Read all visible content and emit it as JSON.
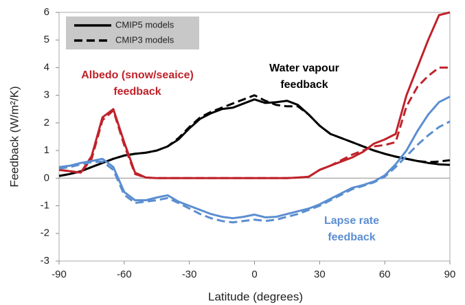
{
  "chart_data": {
    "type": "line",
    "x_label": "Latitude (degrees)",
    "y_label": "Feedback (W/m²/K)",
    "xlim": [
      -90,
      90
    ],
    "ylim": [
      -3,
      6
    ],
    "xticks": [
      -90,
      -60,
      -30,
      0,
      30,
      60,
      90
    ],
    "yticks": [
      -3,
      -2,
      -1,
      0,
      1,
      2,
      3,
      4,
      5,
      6
    ],
    "legend_position": "upper left",
    "series": [
      {
        "name": "CMIP5 models",
        "style": "solid"
      },
      {
        "name": "CMIP3 models",
        "style": "dashed"
      }
    ],
    "x": [
      -90,
      -85,
      -80,
      -75,
      -70,
      -65,
      -60,
      -55,
      -50,
      -45,
      -40,
      -35,
      -30,
      -25,
      -20,
      -15,
      -10,
      -5,
      0,
      5,
      10,
      15,
      20,
      25,
      30,
      35,
      40,
      45,
      50,
      55,
      60,
      65,
      70,
      75,
      80,
      85,
      90
    ],
    "feedbacks": [
      {
        "label": [
          "Water vapour",
          "feedback"
        ],
        "color": "#000000",
        "values": [
          [
            0.08,
            0.15,
            0.25,
            0.4,
            0.55,
            0.7,
            0.82,
            0.88,
            0.92,
            1.0,
            1.15,
            1.4,
            1.8,
            2.15,
            2.35,
            2.5,
            2.55,
            2.7,
            2.85,
            2.72,
            2.75,
            2.8,
            2.65,
            2.3,
            1.9,
            1.6,
            1.45,
            1.3,
            1.15,
            1.0,
            0.88,
            0.78,
            0.7,
            0.62,
            0.55,
            0.5,
            0.48
          ],
          [
            0.08,
            0.15,
            0.25,
            0.4,
            0.55,
            0.7,
            0.82,
            0.88,
            0.92,
            1.0,
            1.15,
            1.45,
            1.85,
            2.2,
            2.4,
            2.55,
            2.7,
            2.85,
            3.0,
            2.8,
            2.65,
            2.6,
            2.6,
            2.3,
            1.9,
            1.6,
            1.45,
            1.3,
            1.15,
            1.0,
            0.88,
            0.78,
            0.7,
            0.62,
            0.58,
            0.6,
            0.65
          ]
        ]
      },
      {
        "label": [
          "Albedo (snow/seaice)",
          "feedback"
        ],
        "color": "#c0222a",
        "values": [
          [
            0.3,
            0.25,
            0.2,
            0.8,
            2.2,
            2.5,
            1.3,
            0.2,
            0.02,
            0.0,
            0.0,
            0.0,
            0.0,
            0.0,
            0.0,
            0.0,
            0.0,
            0.0,
            0.0,
            0.0,
            0.0,
            0.0,
            0.02,
            0.05,
            0.3,
            0.45,
            0.6,
            0.75,
            0.95,
            1.25,
            1.4,
            1.6,
            3.0,
            4.0,
            5.0,
            5.9,
            6.0
          ],
          [
            0.3,
            0.25,
            0.2,
            0.7,
            2.1,
            2.45,
            1.2,
            0.15,
            0.02,
            0.0,
            0.0,
            0.0,
            0.0,
            0.0,
            0.0,
            0.0,
            0.0,
            0.0,
            0.0,
            0.0,
            0.0,
            0.0,
            0.02,
            0.05,
            0.3,
            0.45,
            0.65,
            0.85,
            1.0,
            1.15,
            1.2,
            1.3,
            2.6,
            3.3,
            3.7,
            4.0,
            4.0
          ]
        ]
      },
      {
        "label": [
          "Lapse rate",
          "feedback"
        ],
        "color": "#5b8ed0",
        "values": [
          [
            0.4,
            0.45,
            0.55,
            0.62,
            0.7,
            0.4,
            -0.5,
            -0.8,
            -0.8,
            -0.7,
            -0.62,
            -0.85,
            -1.0,
            -1.15,
            -1.3,
            -1.4,
            -1.45,
            -1.4,
            -1.32,
            -1.42,
            -1.4,
            -1.3,
            -1.2,
            -1.1,
            -0.95,
            -0.75,
            -0.55,
            -0.35,
            -0.25,
            -0.12,
            0.1,
            0.5,
            1.0,
            1.7,
            2.3,
            2.75,
            2.95
          ],
          [
            0.35,
            0.4,
            0.5,
            0.58,
            0.6,
            0.3,
            -0.6,
            -0.9,
            -0.85,
            -0.8,
            -0.72,
            -0.9,
            -1.1,
            -1.3,
            -1.45,
            -1.55,
            -1.6,
            -1.55,
            -1.5,
            -1.55,
            -1.5,
            -1.4,
            -1.3,
            -1.15,
            -1.0,
            -0.8,
            -0.6,
            -0.4,
            -0.28,
            -0.15,
            0.05,
            0.4,
            0.8,
            1.2,
            1.55,
            1.85,
            2.05
          ]
        ]
      }
    ]
  }
}
